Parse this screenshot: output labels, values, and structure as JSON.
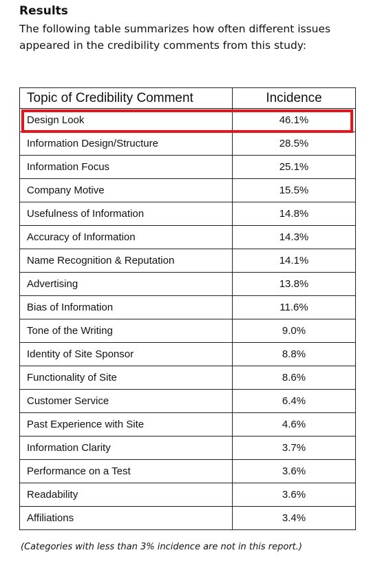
{
  "header": {
    "title": "Results",
    "intro": "The following table summarizes how often different issues appeared in the credibility comments from this study:"
  },
  "table": {
    "columns": [
      "Topic of Credibility Comment",
      "Incidence"
    ],
    "rows": [
      [
        "Design Look",
        "46.1%"
      ],
      [
        "Information Design/Structure",
        "28.5%"
      ],
      [
        "Information Focus",
        "25.1%"
      ],
      [
        "Company Motive",
        "15.5%"
      ],
      [
        "Usefulness of Information",
        "14.8%"
      ],
      [
        "Accuracy of Information",
        "14.3%"
      ],
      [
        "Name Recognition & Reputation",
        "14.1%"
      ],
      [
        "Advertising",
        "13.8%"
      ],
      [
        "Bias of Information",
        "11.6%"
      ],
      [
        "Tone of the Writing",
        "9.0%"
      ],
      [
        "Identity of Site Sponsor",
        "8.8%"
      ],
      [
        "Functionality of Site",
        "8.6%"
      ],
      [
        "Customer Service",
        "6.4%"
      ],
      [
        "Past Experience with Site",
        "4.6%"
      ],
      [
        "Information Clarity",
        "3.7%"
      ],
      [
        "Performance on a Test",
        "3.6%"
      ],
      [
        "Readability",
        "3.6%"
      ],
      [
        "Affiliations",
        "3.4%"
      ]
    ]
  },
  "footnote": "(Categories with less than 3% incidence are not in this report.)"
}
